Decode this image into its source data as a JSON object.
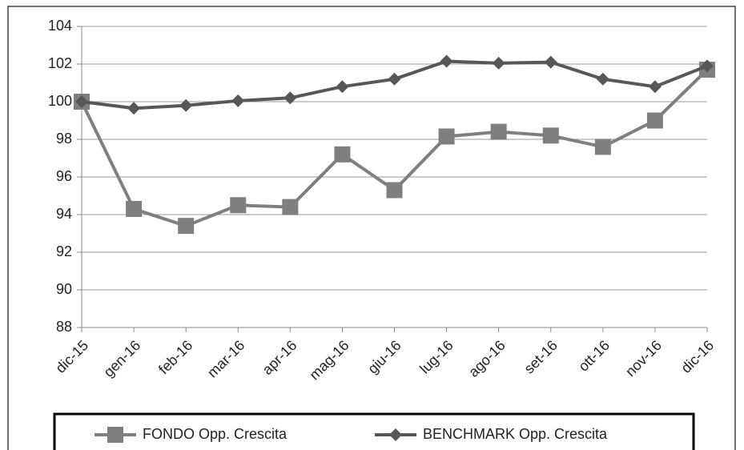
{
  "chart_data": {
    "type": "line",
    "categories": [
      "dic-15",
      "gen-16",
      "feb-16",
      "mar-16",
      "apr-16",
      "mag-16",
      "giu-16",
      "lug-16",
      "ago-16",
      "set-16",
      "ott-16",
      "nov-16",
      "dic-16"
    ],
    "series": [
      {
        "name": "FONDO Opp. Crescita",
        "color": "#7f7f7f",
        "marker": "square",
        "values": [
          100,
          94.3,
          93.4,
          94.5,
          94.4,
          97.2,
          95.3,
          98.15,
          98.4,
          98.2,
          97.6,
          99.0,
          101.7
        ]
      },
      {
        "name": "BENCHMARK Opp. Crescita",
        "color": "#575757",
        "marker": "diamond",
        "values": [
          100,
          99.65,
          99.8,
          100.05,
          100.2,
          100.8,
          101.2,
          102.15,
          102.05,
          102.1,
          101.2,
          100.8,
          101.9
        ]
      }
    ],
    "ylim": [
      88,
      104
    ],
    "yticks": [
      88,
      90,
      92,
      94,
      96,
      98,
      100,
      102,
      104
    ],
    "grid": true,
    "legend": "bottom"
  }
}
